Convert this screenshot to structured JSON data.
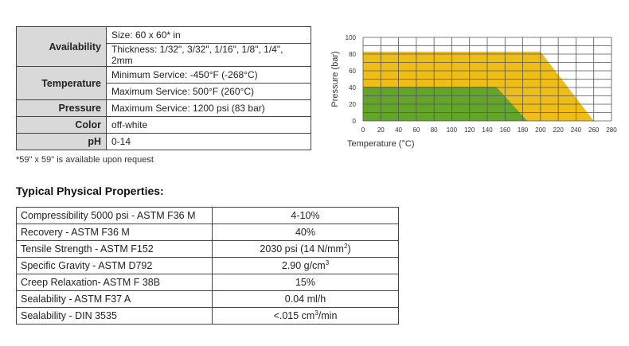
{
  "spec_table": {
    "rows": [
      {
        "label": "Availability",
        "values": [
          "Size: 60 x 60* in",
          "Thickness: 1/32\", 3/32\", 1/16\", 1/8\", 1/4\", 2mm"
        ]
      },
      {
        "label": "Temperature",
        "values": [
          "Minimum Service: -450°F (-268°C)",
          "Maximum Service: 500°F (260°C)"
        ]
      },
      {
        "label": "Pressure",
        "values": [
          "Maximum Service: 1200 psi (83 bar)"
        ]
      },
      {
        "label": "Color",
        "values": [
          "off-white"
        ]
      },
      {
        "label": "pH",
        "values": [
          "0-14"
        ]
      }
    ]
  },
  "footnote": "*59\" x 59\" is available upon request",
  "properties": {
    "title": "Typical Physical  Properties:",
    "rows": [
      {
        "name": "Compressibility 5000 psi - ASTM F36 M",
        "value": "4-10%"
      },
      {
        "name": "Recovery - ASTM F36 M",
        "value": "40%"
      },
      {
        "name": "Tensile Strength - ASTM F152",
        "value": "2030 psi (14 N/mm",
        "sup": "2",
        "tail": ")"
      },
      {
        "name": "Specific Gravity - ASTM D792",
        "value": "2.90 g/cm",
        "sup": "3",
        "tail": ""
      },
      {
        "name": "Creep Relaxation- ASTM F 38B",
        "value": "15%"
      },
      {
        "name": "Sealability - ASTM F37 A",
        "value": "0.04 ml/h"
      },
      {
        "name": "Sealability - DIN 3535",
        "value": "<.015 cm",
        "sup": "3",
        "tail": "/min"
      }
    ]
  },
  "chart_data": {
    "type": "area",
    "title": "",
    "xlabel": "Temperature (°C)",
    "ylabel": "Pressure (bar)",
    "xlim": [
      0,
      280
    ],
    "ylim": [
      0,
      100
    ],
    "xticks": [
      0,
      20,
      40,
      60,
      80,
      100,
      120,
      140,
      160,
      180,
      200,
      220,
      240,
      260,
      280
    ],
    "yticks": [
      0,
      20,
      40,
      60,
      80,
      100
    ],
    "grid": true,
    "series": [
      {
        "color": "#eebd18",
        "points": [
          [
            0,
            0
          ],
          [
            0,
            83
          ],
          [
            200,
            83
          ],
          [
            260,
            0
          ]
        ]
      },
      {
        "color": "#63a52b",
        "points": [
          [
            0,
            0
          ],
          [
            0,
            41
          ],
          [
            150,
            41
          ],
          [
            185,
            0
          ]
        ]
      }
    ]
  }
}
